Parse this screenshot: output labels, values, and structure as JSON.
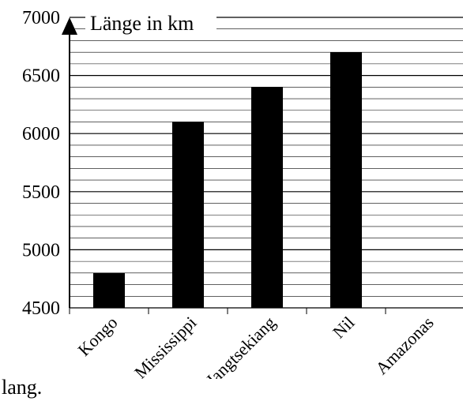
{
  "chart_data": {
    "type": "bar",
    "ylabel": "Länge in km",
    "categories": [
      "Kongo",
      "Mississippi",
      "Jangtsekiang",
      "Nil",
      "Amazonas"
    ],
    "values": [
      4800,
      6100,
      6400,
      6700,
      null
    ],
    "ylim": [
      4500,
      7000
    ],
    "yticks": [
      4500,
      5000,
      5500,
      6000,
      6500,
      7000
    ],
    "minor_grid_step": 100,
    "grid": true,
    "bar_color": "#000000"
  },
  "caption": "lang."
}
